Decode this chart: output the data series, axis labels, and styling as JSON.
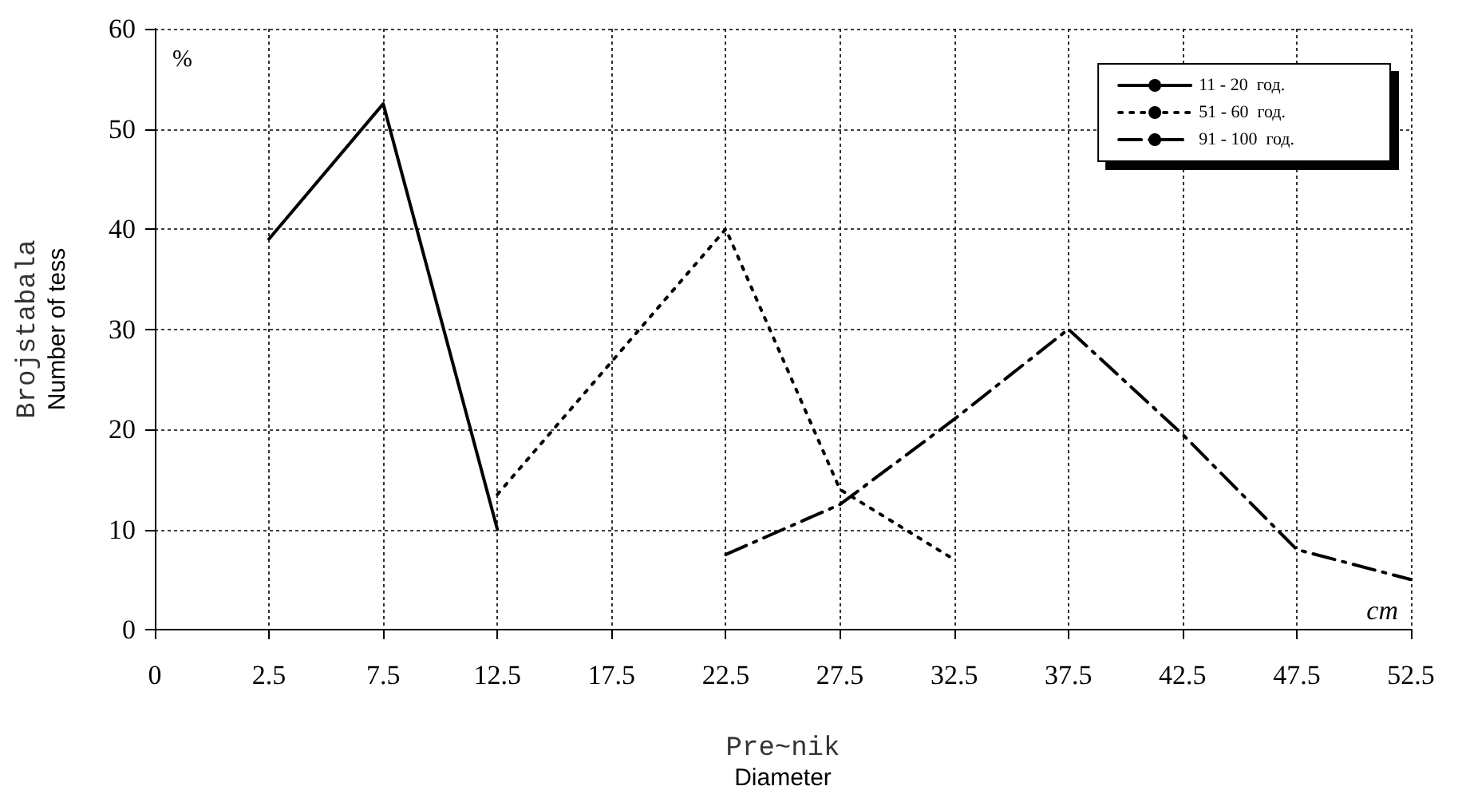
{
  "chart_data": {
    "type": "line",
    "xlabel": "Pre~nik\nDiameter",
    "ylabel": "Brojstabala\nNumber of tess",
    "categories": [
      "0",
      "2.5",
      "7.5",
      "12.5",
      "17.5",
      "22.5",
      "27.5",
      "32.5",
      "37.5",
      "42.5",
      "47.5",
      "52.5"
    ],
    "series": [
      {
        "name": "11 - 20  год.",
        "color": "#000000",
        "line_style": "solid",
        "values": [
          null,
          39,
          52.5,
          10,
          null,
          null,
          null,
          null,
          null,
          null,
          null,
          null
        ]
      },
      {
        "name": "51 - 60  год.",
        "color": "#000000",
        "line_style": "dotted",
        "values": [
          null,
          null,
          null,
          13.5,
          null,
          40,
          14,
          7,
          null,
          null,
          null,
          null
        ]
      },
      {
        "name": "91 - 100  год.",
        "color": "#000000",
        "line_style": "dashdot",
        "values": [
          null,
          null,
          null,
          null,
          null,
          7.5,
          12.5,
          21,
          30,
          19.5,
          8,
          5
        ]
      }
    ],
    "ylim": [
      0,
      60
    ],
    "yticks": [
      0,
      10,
      20,
      30,
      40,
      50,
      60
    ],
    "grid": true,
    "legend": "top right",
    "marker": "none",
    "annotations": [
      "%",
      "cm"
    ]
  }
}
